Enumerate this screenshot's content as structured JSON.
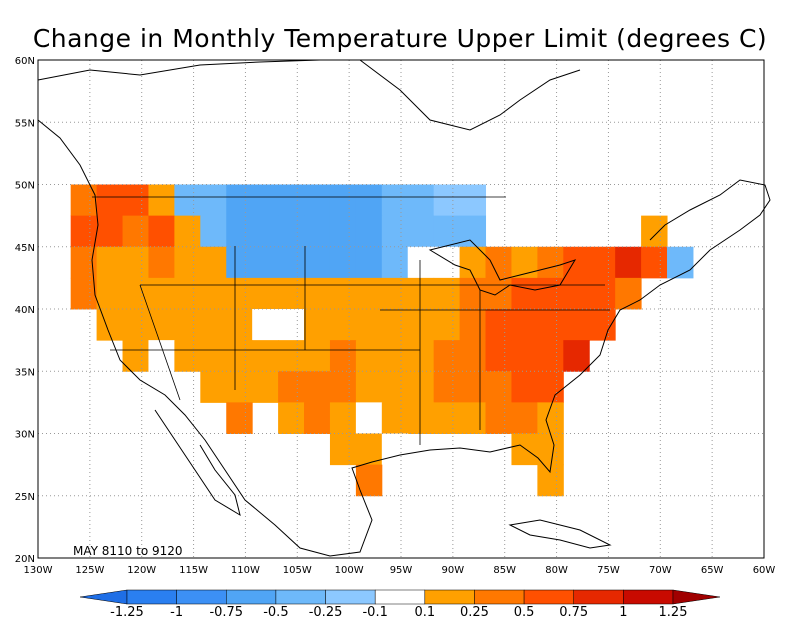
{
  "title": "Change in Monthly Temperature Upper Limit (degrees C)",
  "period": "MAY  8110  to  9120",
  "map": {
    "lon_range": [
      -130,
      -60
    ],
    "lat_range": [
      20,
      60
    ],
    "lon_ticks": [
      "130W",
      "125W",
      "120W",
      "115W",
      "110W",
      "105W",
      "100W",
      "95W",
      "90W",
      "85W",
      "80W",
      "75W",
      "70W",
      "65W",
      "60W"
    ],
    "lat_ticks": [
      "20N",
      "25N",
      "30N",
      "35N",
      "40N",
      "45N",
      "50N",
      "55N",
      "60N"
    ],
    "grid": "dotted"
  },
  "colorbar": {
    "labels": [
      "-1.25",
      "-1",
      "-0.75",
      "-0.5",
      "-0.25",
      "-0.1",
      "0.1",
      "0.25",
      "0.5",
      "0.75",
      "1",
      "1.25"
    ],
    "colors": [
      "#1e6ee6",
      "#2a7ff0",
      "#3c90f5",
      "#50a5f5",
      "#6eb9fa",
      "#8cc8ff",
      "#ffffff",
      "#ffa000",
      "#ff7800",
      "#ff5000",
      "#e62800",
      "#c80a00",
      "#a00000"
    ]
  },
  "levels": {
    "-1": "#50a5f5",
    "-2": "#6eb9fa",
    "-3": "#8cc8ff",
    "0": "#ffffff",
    "1": "#ffa000",
    "2": "#ff7800",
    "3": "#ff5000",
    "4": "#e62800"
  },
  "grid_cells": [
    {
      "lat": 48.75,
      "row": [
        [
          -125.6,
          2
        ],
        [
          -123.1,
          3
        ],
        [
          -120.6,
          3
        ],
        [
          -118.1,
          1
        ],
        [
          -115.6,
          -2
        ],
        [
          -113.1,
          -2
        ],
        [
          -110.6,
          -1
        ],
        [
          -108.1,
          -1
        ],
        [
          -105.6,
          -1
        ],
        [
          -103.1,
          -1
        ],
        [
          -100.6,
          -1
        ],
        [
          -98.1,
          -1
        ],
        [
          -95.6,
          -2
        ],
        [
          -93.1,
          -2
        ],
        [
          -90.6,
          -3
        ],
        [
          -88.1,
          -3
        ]
      ]
    },
    {
      "lat": 46.25,
      "row": [
        [
          -125.6,
          3
        ],
        [
          -123.1,
          3
        ],
        [
          -120.6,
          2
        ],
        [
          -118.1,
          3
        ],
        [
          -115.6,
          1
        ],
        [
          -113.1,
          -2
        ],
        [
          -110.6,
          -1
        ],
        [
          -108.1,
          -1
        ],
        [
          -105.6,
          -1
        ],
        [
          -103.1,
          -1
        ],
        [
          -100.6,
          -1
        ],
        [
          -98.1,
          -1
        ],
        [
          -95.6,
          -2
        ],
        [
          -93.1,
          -2
        ],
        [
          -90.6,
          -2
        ],
        [
          -88.1,
          -2
        ],
        [
          -70.6,
          1
        ]
      ]
    },
    {
      "lat": 43.75,
      "row": [
        [
          -125.6,
          2
        ],
        [
          -123.1,
          1
        ],
        [
          -120.6,
          1
        ],
        [
          -118.1,
          2
        ],
        [
          -115.6,
          1
        ],
        [
          -113.1,
          1
        ],
        [
          -110.6,
          -1
        ],
        [
          -108.1,
          -1
        ],
        [
          -105.6,
          -1
        ],
        [
          -103.1,
          -1
        ],
        [
          -100.6,
          -1
        ],
        [
          -98.1,
          -1
        ],
        [
          -95.6,
          -2
        ],
        [
          -93.1,
          0
        ],
        [
          -90.6,
          0
        ],
        [
          -88.1,
          1
        ],
        [
          -85.6,
          2
        ],
        [
          -83.1,
          1
        ],
        [
          -80.6,
          2
        ],
        [
          -78.1,
          3
        ],
        [
          -75.6,
          3
        ],
        [
          -73.1,
          4
        ],
        [
          -70.6,
          3
        ],
        [
          -68.1,
          -2
        ]
      ]
    },
    {
      "lat": 41.25,
      "row": [
        [
          -125.6,
          2
        ],
        [
          -123.1,
          1
        ],
        [
          -120.6,
          1
        ],
        [
          -118.1,
          1
        ],
        [
          -115.6,
          1
        ],
        [
          -113.1,
          1
        ],
        [
          -110.6,
          1
        ],
        [
          -108.1,
          1
        ],
        [
          -105.6,
          1
        ],
        [
          -103.1,
          1
        ],
        [
          -100.6,
          1
        ],
        [
          -98.1,
          1
        ],
        [
          -95.6,
          1
        ],
        [
          -93.1,
          1
        ],
        [
          -90.6,
          1
        ],
        [
          -88.1,
          2
        ],
        [
          -85.6,
          2
        ],
        [
          -83.1,
          3
        ],
        [
          -80.6,
          3
        ],
        [
          -78.1,
          3
        ],
        [
          -75.6,
          3
        ],
        [
          -73.1,
          2
        ]
      ]
    },
    {
      "lat": 38.75,
      "row": [
        [
          -123.1,
          1
        ],
        [
          -120.6,
          1
        ],
        [
          -118.1,
          1
        ],
        [
          -115.6,
          1
        ],
        [
          -113.1,
          1
        ],
        [
          -110.6,
          1
        ],
        [
          -108.1,
          0
        ],
        [
          -105.6,
          0
        ],
        [
          -103.1,
          1
        ],
        [
          -100.6,
          1
        ],
        [
          -98.1,
          1
        ],
        [
          -95.6,
          1
        ],
        [
          -93.1,
          1
        ],
        [
          -90.6,
          1
        ],
        [
          -88.1,
          2
        ],
        [
          -85.6,
          3
        ],
        [
          -83.1,
          3
        ],
        [
          -80.6,
          3
        ],
        [
          -78.1,
          3
        ],
        [
          -75.6,
          3
        ]
      ]
    },
    {
      "lat": 36.25,
      "row": [
        [
          -120.6,
          1
        ],
        [
          -118.1,
          0
        ],
        [
          -115.6,
          1
        ],
        [
          -113.1,
          1
        ],
        [
          -110.6,
          1
        ],
        [
          -108.1,
          1
        ],
        [
          -105.6,
          1
        ],
        [
          -103.1,
          1
        ],
        [
          -100.6,
          2
        ],
        [
          -98.1,
          1
        ],
        [
          -95.6,
          1
        ],
        [
          -93.1,
          1
        ],
        [
          -90.6,
          2
        ],
        [
          -88.1,
          2
        ],
        [
          -85.6,
          3
        ],
        [
          -83.1,
          3
        ],
        [
          -80.6,
          3
        ],
        [
          -78.1,
          4
        ]
      ]
    },
    {
      "lat": 33.75,
      "row": [
        [
          -113.1,
          1
        ],
        [
          -110.6,
          1
        ],
        [
          -108.1,
          1
        ],
        [
          -105.6,
          2
        ],
        [
          -103.1,
          2
        ],
        [
          -100.6,
          2
        ],
        [
          -98.1,
          1
        ],
        [
          -95.6,
          1
        ],
        [
          -93.1,
          1
        ],
        [
          -90.6,
          2
        ],
        [
          -88.1,
          2
        ],
        [
          -85.6,
          2
        ],
        [
          -83.1,
          3
        ],
        [
          -80.6,
          3
        ]
      ]
    },
    {
      "lat": 31.25,
      "row": [
        [
          -110.6,
          2
        ],
        [
          -105.6,
          1
        ],
        [
          -103.1,
          2
        ],
        [
          -100.6,
          1
        ],
        [
          -98.1,
          0
        ],
        [
          -95.6,
          1
        ],
        [
          -93.1,
          1
        ],
        [
          -90.6,
          1
        ],
        [
          -88.1,
          1
        ],
        [
          -85.6,
          2
        ],
        [
          -83.1,
          2
        ],
        [
          -80.6,
          1
        ]
      ]
    },
    {
      "lat": 28.75,
      "row": [
        [
          -100.6,
          1
        ],
        [
          -98.1,
          1
        ],
        [
          -95.6,
          0
        ],
        [
          -83.1,
          1
        ],
        [
          -80.6,
          1
        ]
      ]
    },
    {
      "lat": 26.25,
      "row": [
        [
          -98.1,
          2
        ],
        [
          -80.6,
          1
        ]
      ]
    }
  ]
}
